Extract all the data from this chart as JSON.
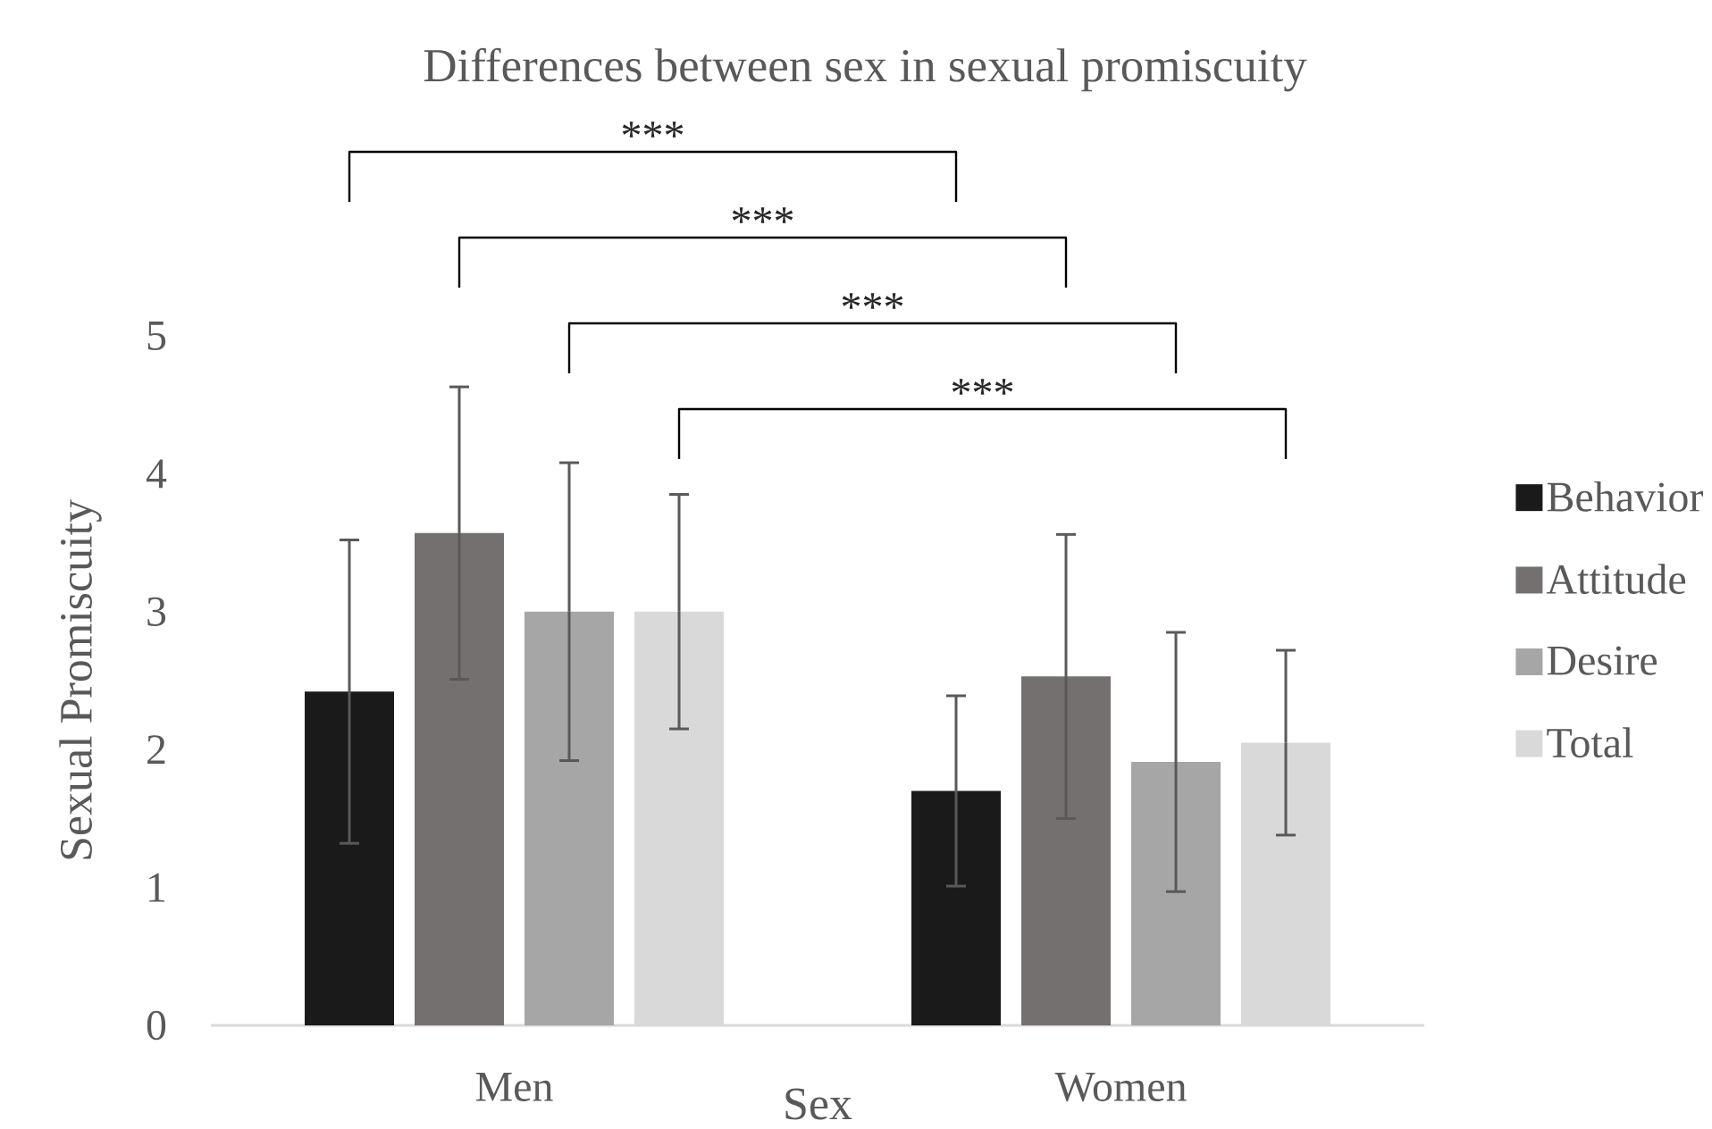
{
  "chart_data": {
    "type": "bar",
    "title": "Differences between sex in sexual promiscuity",
    "xlabel": "Sex",
    "ylabel": "Sexual Promiscuity",
    "categories": [
      "Men",
      "Women"
    ],
    "series": [
      {
        "name": "Behavior",
        "color": "#1a1a1a",
        "values": [
          2.42,
          1.7
        ],
        "errors": [
          1.1,
          0.69
        ]
      },
      {
        "name": "Attitude",
        "color": "#757070",
        "values": [
          3.57,
          2.53
        ],
        "errors": [
          1.06,
          1.03
        ]
      },
      {
        "name": "Desire",
        "color": "#a6a6a6",
        "values": [
          3.0,
          1.91
        ],
        "errors": [
          1.08,
          0.94
        ]
      },
      {
        "name": "Total",
        "color": "#d9d9d9",
        "values": [
          3.0,
          2.05
        ],
        "errors": [
          0.85,
          0.67
        ]
      }
    ],
    "ylim": [
      0,
      5
    ],
    "yticks": [
      0,
      1,
      2,
      3,
      4,
      5
    ],
    "legend": "right",
    "annotations": [
      "***",
      "***",
      "***",
      "***"
    ]
  }
}
